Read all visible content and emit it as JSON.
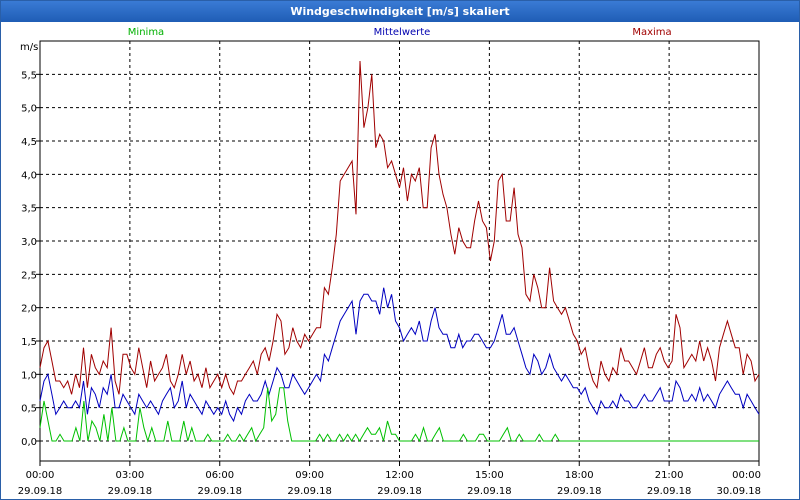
{
  "window": {
    "title": "Windgeschwindigkeit [m/s] skaliert"
  },
  "colors": {
    "min": "#00c000",
    "mean": "#0000c0",
    "max": "#a00000",
    "grid": "#000000"
  },
  "chart_data": {
    "type": "line",
    "title": "Windgeschwindigkeit [m/s] skaliert",
    "ylabel": "m/s",
    "ylim": [
      -0.3,
      6.0
    ],
    "xlim": [
      0,
      24
    ],
    "yticks": [
      0.0,
      0.5,
      1.0,
      1.5,
      2.0,
      2.5,
      3.0,
      3.5,
      4.0,
      4.5,
      5.0,
      5.5
    ],
    "ytick_labels": [
      "0,0",
      "0,5",
      "1,0",
      "1,5",
      "2,0",
      "2,5",
      "3,0",
      "3,5",
      "4,0",
      "4,5",
      "5,0",
      "5,5"
    ],
    "xticks": [
      {
        "time": "00:00",
        "date": "29.09.18"
      },
      {
        "time": "03:00",
        "date": "29.09.18"
      },
      {
        "time": "06:00",
        "date": "29.09.18"
      },
      {
        "time": "09:00",
        "date": "29.09.18"
      },
      {
        "time": "12:00",
        "date": "29.09.18"
      },
      {
        "time": "15:00",
        "date": "29.09.18"
      },
      {
        "time": "18:00",
        "date": "29.09.18"
      },
      {
        "time": "21:00",
        "date": "29.09.18"
      },
      {
        "time": "00:00",
        "date": "30.09.18"
      }
    ],
    "legend": [
      "Minima",
      "Mittelwerte",
      "Maxima"
    ],
    "series": [
      {
        "name": "Maxima",
        "values": [
          1.1,
          1.4,
          1.5,
          1.2,
          0.9,
          0.9,
          0.8,
          0.9,
          0.7,
          1.0,
          0.8,
          1.4,
          0.8,
          1.3,
          1.1,
          1.0,
          1.2,
          1.1,
          1.7,
          0.9,
          0.7,
          1.3,
          1.3,
          1.1,
          1.0,
          1.4,
          1.1,
          0.8,
          1.2,
          0.9,
          1.0,
          1.1,
          1.3,
          0.9,
          0.8,
          1.0,
          1.3,
          1.0,
          1.2,
          0.9,
          1.0,
          0.8,
          1.1,
          0.8,
          0.9,
          1.0,
          0.8,
          1.0,
          0.8,
          0.7,
          0.9,
          0.9,
          1.0,
          1.1,
          1.2,
          1.0,
          1.3,
          1.4,
          1.2,
          1.5,
          1.9,
          1.8,
          1.3,
          1.4,
          1.7,
          1.5,
          1.4,
          1.6,
          1.5,
          1.6,
          1.7,
          1.7,
          2.3,
          2.2,
          2.6,
          3.1,
          3.9,
          4.0,
          4.1,
          4.2,
          3.4,
          5.7,
          4.7,
          5.0,
          5.5,
          4.4,
          4.6,
          4.5,
          4.1,
          4.2,
          4.0,
          3.8,
          4.1,
          3.6,
          4.0,
          3.9,
          4.1,
          3.5,
          3.5,
          4.4,
          4.6,
          4.0,
          3.7,
          3.5,
          3.1,
          2.8,
          3.2,
          3.0,
          2.9,
          2.9,
          3.3,
          3.6,
          3.3,
          3.2,
          2.7,
          3.0,
          3.9,
          4.0,
          3.3,
          3.3,
          3.8,
          3.1,
          2.9,
          2.2,
          2.1,
          2.5,
          2.3,
          2.0,
          2.0,
          2.6,
          2.1,
          2.0,
          1.9,
          2.0,
          1.8,
          1.6,
          1.5,
          1.3,
          1.4,
          1.1,
          0.9,
          0.8,
          1.2,
          1.0,
          0.9,
          1.1,
          1.0,
          1.4,
          1.2,
          1.2,
          1.1,
          1.0,
          1.2,
          1.4,
          1.1,
          1.1,
          1.3,
          1.4,
          1.2,
          1.1,
          1.2,
          1.9,
          1.7,
          1.1,
          1.2,
          1.3,
          1.2,
          1.5,
          1.2,
          1.4,
          1.2,
          0.9,
          1.4,
          1.6,
          1.8,
          1.6,
          1.4,
          1.4,
          1.0,
          1.3,
          1.2,
          0.9,
          1.0
        ]
      },
      {
        "name": "Mittelwerte",
        "values": [
          0.6,
          0.9,
          1.0,
          0.7,
          0.4,
          0.5,
          0.6,
          0.5,
          0.5,
          0.6,
          0.5,
          0.9,
          0.4,
          0.8,
          0.7,
          0.5,
          0.8,
          0.7,
          1.0,
          0.5,
          0.5,
          0.7,
          0.6,
          0.5,
          0.4,
          0.7,
          0.6,
          0.5,
          0.6,
          0.5,
          0.4,
          0.6,
          0.7,
          0.8,
          0.5,
          0.6,
          0.9,
          0.5,
          0.7,
          0.6,
          0.5,
          0.4,
          0.6,
          0.5,
          0.4,
          0.5,
          0.4,
          0.6,
          0.4,
          0.3,
          0.5,
          0.4,
          0.6,
          0.7,
          0.6,
          0.6,
          0.7,
          0.9,
          0.7,
          0.9,
          1.1,
          1.0,
          0.8,
          0.8,
          1.0,
          0.9,
          0.8,
          0.7,
          0.8,
          0.9,
          1.0,
          0.9,
          1.3,
          1.2,
          1.4,
          1.6,
          1.8,
          1.9,
          2.0,
          2.1,
          1.6,
          2.1,
          2.2,
          2.2,
          2.1,
          2.1,
          1.9,
          2.3,
          2.0,
          2.2,
          1.8,
          1.7,
          1.5,
          1.6,
          1.7,
          1.6,
          1.8,
          1.5,
          1.5,
          1.8,
          2.0,
          1.7,
          1.6,
          1.6,
          1.4,
          1.4,
          1.6,
          1.4,
          1.5,
          1.5,
          1.6,
          1.6,
          1.5,
          1.4,
          1.4,
          1.5,
          1.7,
          1.9,
          1.6,
          1.6,
          1.7,
          1.5,
          1.3,
          1.1,
          1.0,
          1.3,
          1.2,
          1.0,
          1.1,
          1.3,
          1.1,
          1.0,
          0.9,
          1.0,
          0.9,
          0.8,
          0.8,
          0.7,
          0.8,
          0.6,
          0.5,
          0.4,
          0.6,
          0.5,
          0.5,
          0.6,
          0.5,
          0.7,
          0.6,
          0.6,
          0.5,
          0.5,
          0.6,
          0.7,
          0.6,
          0.6,
          0.7,
          0.8,
          0.6,
          0.6,
          0.6,
          0.9,
          0.8,
          0.6,
          0.6,
          0.7,
          0.6,
          0.8,
          0.6,
          0.7,
          0.6,
          0.5,
          0.7,
          0.8,
          0.9,
          0.8,
          0.7,
          0.7,
          0.5,
          0.7,
          0.6,
          0.5,
          0.4
        ]
      },
      {
        "name": "Minima",
        "values": [
          0.2,
          0.6,
          0.3,
          0.0,
          0.0,
          0.1,
          0.0,
          0.0,
          0.0,
          0.2,
          0.0,
          0.6,
          0.0,
          0.3,
          0.2,
          0.0,
          0.4,
          0.0,
          0.5,
          0.0,
          0.0,
          0.2,
          0.0,
          0.0,
          0.0,
          0.5,
          0.2,
          0.0,
          0.2,
          0.0,
          0.0,
          0.0,
          0.3,
          0.0,
          0.0,
          0.0,
          0.3,
          0.0,
          0.2,
          0.0,
          0.0,
          0.0,
          0.1,
          0.0,
          0.0,
          0.0,
          0.0,
          0.1,
          0.0,
          0.0,
          0.1,
          0.0,
          0.1,
          0.2,
          0.0,
          0.1,
          0.2,
          0.8,
          0.3,
          0.4,
          0.8,
          0.8,
          0.3,
          0.0,
          0.0,
          0.0,
          0.0,
          0.0,
          0.0,
          0.0,
          0.1,
          0.0,
          0.1,
          0.0,
          0.0,
          0.1,
          0.0,
          0.1,
          0.0,
          0.1,
          0.0,
          0.1,
          0.2,
          0.1,
          0.1,
          0.2,
          0.0,
          0.3,
          0.1,
          0.1,
          0.0,
          0.0,
          0.0,
          0.0,
          0.1,
          0.0,
          0.2,
          0.0,
          0.0,
          0.1,
          0.2,
          0.0,
          0.0,
          0.0,
          0.0,
          0.0,
          0.1,
          0.0,
          0.0,
          0.0,
          0.1,
          0.1,
          0.0,
          0.0,
          0.0,
          0.0,
          0.1,
          0.2,
          0.0,
          0.0,
          0.1,
          0.0,
          0.0,
          0.0,
          0.0,
          0.1,
          0.0,
          0.0,
          0.0,
          0.1,
          0.0,
          0.0,
          0.0,
          0.0,
          0.0,
          0.0,
          0.0,
          0.0,
          0.0,
          0.0,
          0.0,
          0.0,
          0.0,
          0.0,
          0.0,
          0.0,
          0.0,
          0.0,
          0.0,
          0.0,
          0.0,
          0.0,
          0.0,
          0.0,
          0.0,
          0.0,
          0.0,
          0.0,
          0.0,
          0.0,
          0.0,
          0.0,
          0.0,
          0.0,
          0.0,
          0.0,
          0.0,
          0.0,
          0.0,
          0.0,
          0.0,
          0.0,
          0.0,
          0.0,
          0.0,
          0.0,
          0.0,
          0.0,
          0.0,
          0.0,
          0.0
        ]
      }
    ]
  }
}
